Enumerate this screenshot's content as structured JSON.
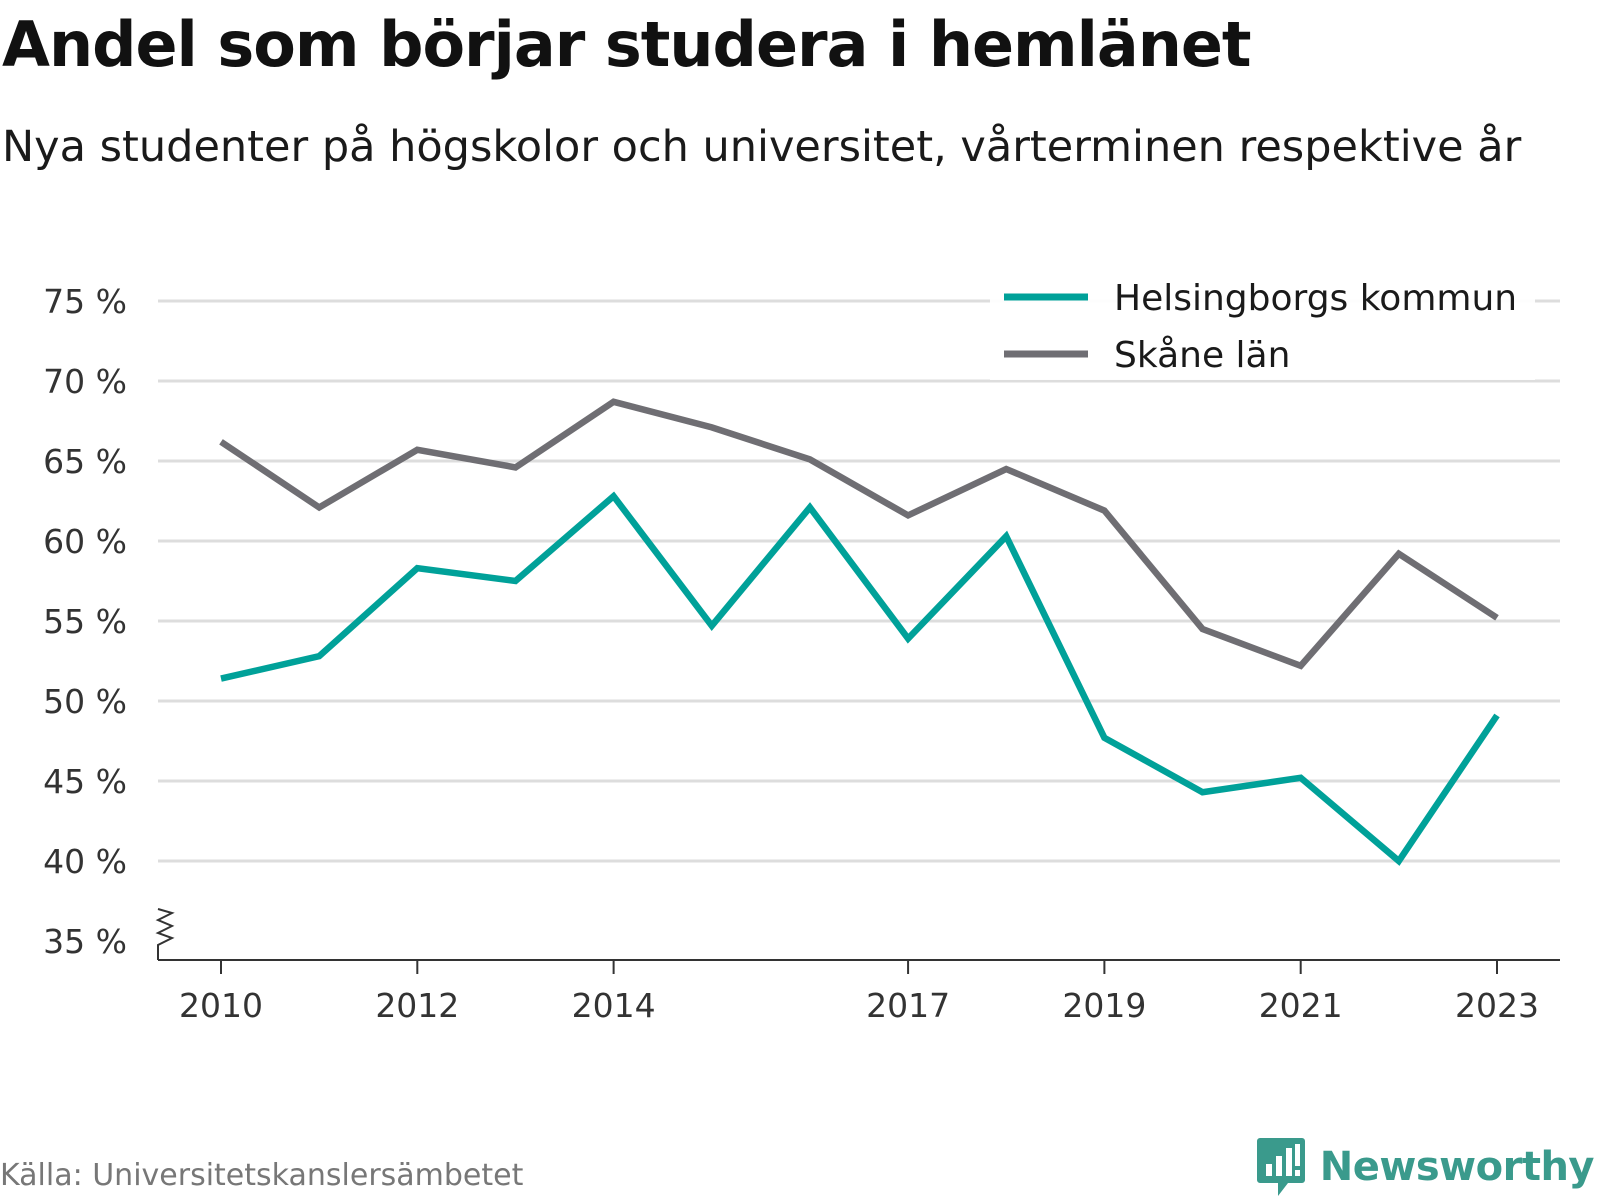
{
  "header": {
    "title": "Andel som börjar studera i hemlänet",
    "subtitle": "Nya studenter på högskolor och universitet, vårterminen respektive år"
  },
  "footer": {
    "source": "Källa: Universitetskanslersämbetet",
    "brand": "Newsworthy",
    "brand_icon": "newsworthy-logo-icon"
  },
  "colors": {
    "helsingborg": "#00a199",
    "skane": "#6f6e73",
    "grid": "#dddddd",
    "axis": "#333333",
    "brand": "#3a9a8c"
  },
  "chart_data": {
    "type": "line",
    "x": [
      2010,
      2011,
      2012,
      2013,
      2014,
      2015,
      2016,
      2017,
      2018,
      2019,
      2020,
      2021,
      2022,
      2023
    ],
    "x_tick_labels": [
      "2010",
      "2012",
      "2014",
      "2017",
      "2019",
      "2021",
      "2023"
    ],
    "y_tick_labels": [
      "35 %",
      "40 %",
      "45 %",
      "50 %",
      "55 %",
      "60 %",
      "65 %",
      "70 %",
      "75 %"
    ],
    "ylim": [
      35,
      75
    ],
    "y_axis_break": true,
    "grid": "horizontal",
    "legend_position": "top-right",
    "series": [
      {
        "name": "Helsingborgs kommun",
        "color": "#00a199",
        "values": [
          51.4,
          52.8,
          58.3,
          57.5,
          62.8,
          54.7,
          62.1,
          53.9,
          60.3,
          47.7,
          44.3,
          45.2,
          40.0,
          49.1
        ]
      },
      {
        "name": "Skåne län",
        "color": "#6f6e73",
        "values": [
          66.2,
          62.1,
          65.7,
          64.6,
          68.7,
          67.1,
          65.1,
          61.6,
          64.5,
          61.9,
          54.5,
          52.2,
          59.2,
          55.2
        ]
      }
    ]
  }
}
